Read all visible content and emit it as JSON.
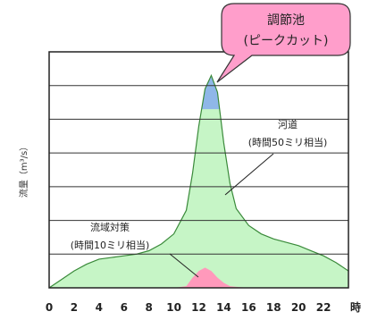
{
  "chart_data": {
    "type": "area",
    "x": [
      0,
      1,
      2,
      3,
      4,
      5,
      6,
      7,
      8,
      9,
      10,
      11,
      11.5,
      12,
      12.5,
      13,
      13.5,
      14,
      14.5,
      15,
      16,
      17,
      18,
      19,
      20,
      21,
      22,
      23,
      24
    ],
    "xlim": [
      0,
      24
    ],
    "xticks": [
      "0",
      "2",
      "4",
      "6",
      "8",
      "10",
      "12",
      "14",
      "16",
      "18",
      "20",
      "22"
    ],
    "x_unit": "時",
    "ylabel": "流量（m³/s）",
    "ylim": [
      0,
      7
    ],
    "gridlines": [
      1,
      2,
      3,
      4,
      5,
      6
    ],
    "series": [
      {
        "key": "total",
        "values": [
          0,
          0.25,
          0.5,
          0.7,
          0.85,
          0.9,
          0.95,
          1.0,
          1.1,
          1.3,
          1.6,
          2.3,
          3.4,
          4.8,
          5.9,
          6.3,
          5.8,
          4.3,
          3.1,
          2.35,
          1.85,
          1.6,
          1.45,
          1.35,
          1.25,
          1.1,
          0.95,
          0.75,
          0.5
        ]
      },
      {
        "key": "basin",
        "values": [
          0,
          0,
          0,
          0,
          0,
          0,
          0,
          0,
          0,
          0,
          0,
          0.05,
          0.3,
          0.5,
          0.6,
          0.5,
          0.3,
          0.15,
          0.05,
          0.03,
          0,
          0,
          0,
          0,
          0,
          0,
          0,
          0,
          0
        ]
      }
    ],
    "peak_cut_level": 5.3,
    "annotations": {
      "river": [
        "河道",
        "(時間50ミリ相当)"
      ],
      "basin": [
        "流域対策",
        "(時間10ミリ相当)"
      ],
      "pond": [
        "調節池",
        "(ピークカット)"
      ]
    },
    "colors": {
      "river": "#c6f5c6",
      "pond": "#8fb7e8",
      "basin": "#ff99bb",
      "outline": "#3a8a3a",
      "callout": "#ff9ecb",
      "grid": "#333333"
    }
  }
}
